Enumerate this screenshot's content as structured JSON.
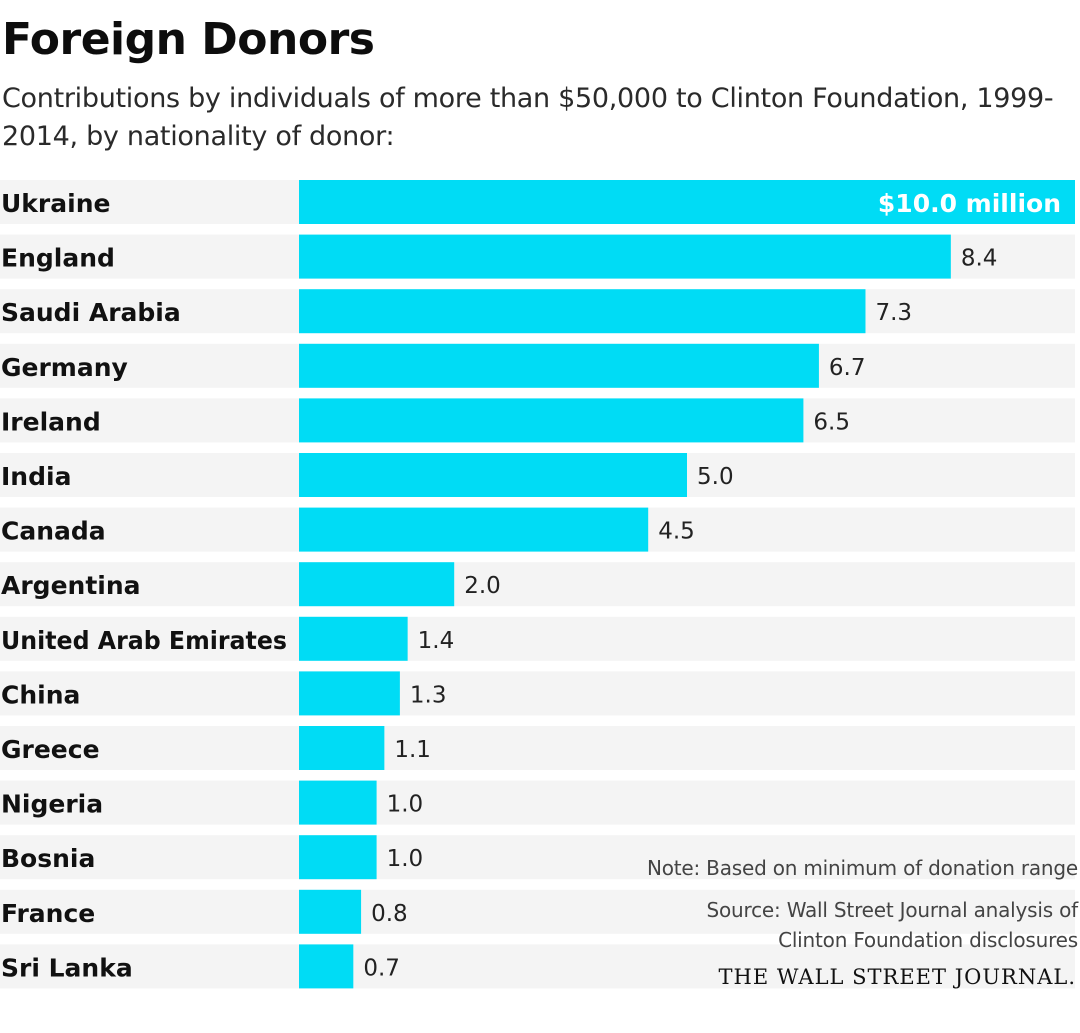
{
  "header": {
    "title": "Foreign Donors",
    "subtitle": "Contributions by individuals of more than $50,000 to Clinton Foundation, 1999-2014, by nationality of donor:"
  },
  "chart_data": {
    "type": "bar",
    "orientation": "horizontal",
    "title": "Foreign Donors",
    "subtitle": "Contributions by individuals of more than $50,000 to Clinton Foundation, 1999-2014, by nationality of donor:",
    "xlabel": "",
    "ylabel": "",
    "unit": "million USD",
    "xlim": [
      0,
      10
    ],
    "grid": false,
    "categories": [
      "Ukraine",
      "England",
      "Saudi Arabia",
      "Germany",
      "Ireland",
      "India",
      "Canada",
      "Argentina",
      "United Arab Emirates",
      "China",
      "Greece",
      "Nigeria",
      "Bosnia",
      "France",
      "Sri Lanka"
    ],
    "values": [
      10.0,
      8.4,
      7.3,
      6.7,
      6.5,
      5.0,
      4.5,
      2.0,
      1.4,
      1.3,
      1.1,
      1.0,
      1.0,
      0.8,
      0.7
    ],
    "value_labels": [
      "$10.0 million",
      "8.4",
      "7.3",
      "6.7",
      "6.5",
      "5.0",
      "4.5",
      "2.0",
      "1.4",
      "1.3",
      "1.1",
      "1.0",
      "1.0",
      "0.8",
      "0.7"
    ],
    "bar_color": "#00dcf5",
    "row_band_color": "#f4f4f4"
  },
  "footer": {
    "note": "Note: Based on minimum of donation range",
    "source_line1": "Source: Wall Street Journal analysis of",
    "source_line2": "Clinton Foundation disclosures",
    "logo": "THE WALL STREET JOURNAL."
  }
}
